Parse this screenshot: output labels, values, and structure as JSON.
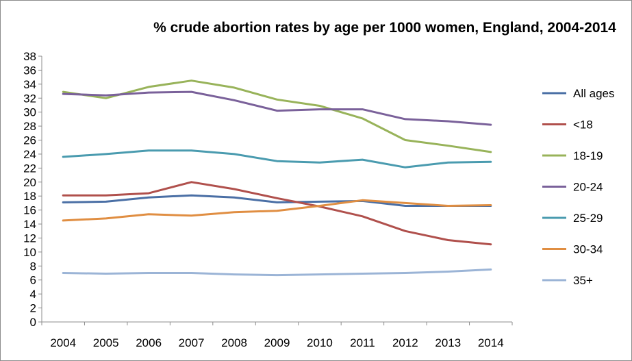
{
  "chart_data": {
    "type": "line",
    "title": "% crude abortion rates by age per 1000 women, England, 2004-2014",
    "xlabel": "",
    "ylabel": "",
    "x": [
      "2004",
      "2005",
      "2006",
      "2007",
      "2008",
      "2009",
      "2010",
      "2011",
      "2012",
      "2013",
      "2014"
    ],
    "ylim": [
      0,
      38
    ],
    "yticks": [
      0,
      2,
      4,
      6,
      8,
      10,
      12,
      14,
      16,
      18,
      20,
      22,
      24,
      26,
      28,
      30,
      32,
      34,
      36,
      38
    ],
    "grid": false,
    "legend_position": "right",
    "series": [
      {
        "name": "All ages",
        "color": "#4A6FA5",
        "values": [
          17.1,
          17.2,
          17.8,
          18.1,
          17.8,
          17.1,
          17.2,
          17.3,
          16.6,
          16.6,
          16.6
        ]
      },
      {
        "name": "<18",
        "color": "#B0504C",
        "values": [
          18.1,
          18.1,
          18.4,
          20.0,
          19.0,
          17.7,
          16.5,
          15.1,
          13.0,
          11.7,
          11.1
        ]
      },
      {
        "name": "18-19",
        "color": "#98B35A",
        "values": [
          32.9,
          32.0,
          33.6,
          34.5,
          33.5,
          31.8,
          30.9,
          29.1,
          26.0,
          25.2,
          24.3
        ]
      },
      {
        "name": "20-24",
        "color": "#7A619A",
        "values": [
          32.6,
          32.4,
          32.8,
          32.9,
          31.7,
          30.2,
          30.4,
          30.4,
          29.0,
          28.7,
          28.2
        ]
      },
      {
        "name": "25-29",
        "color": "#4A9BAF",
        "values": [
          23.6,
          24.0,
          24.5,
          24.5,
          24.0,
          23.0,
          22.8,
          23.2,
          22.1,
          22.8,
          22.9
        ]
      },
      {
        "name": "30-34",
        "color": "#E08E42",
        "values": [
          14.5,
          14.8,
          15.4,
          15.2,
          15.7,
          15.9,
          16.6,
          17.4,
          17.0,
          16.6,
          16.7
        ]
      },
      {
        "name": "35+",
        "color": "#9BB4D6",
        "values": [
          7.0,
          6.9,
          7.0,
          7.0,
          6.8,
          6.7,
          6.8,
          6.9,
          7.0,
          7.2,
          7.5
        ]
      }
    ]
  }
}
